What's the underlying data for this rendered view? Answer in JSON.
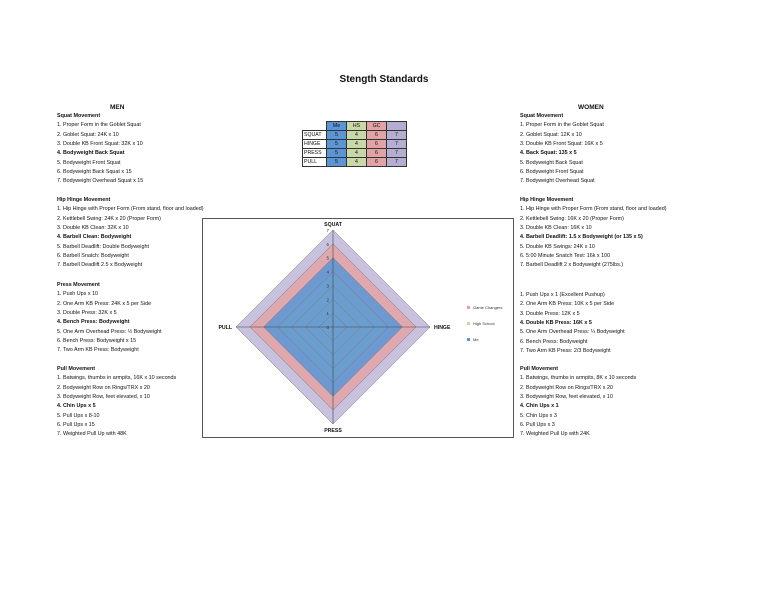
{
  "title": "Stength Standards",
  "men": {
    "heading": "MEN",
    "sections": [
      {
        "title": "Squat Movement",
        "items": [
          {
            "text": "1. Proper Form in the Goblet Squat",
            "bold": false
          },
          {
            "text": "2. Goblet Squat: 24K x 10",
            "bold": false
          },
          {
            "text": "3. Double KB Front Squat: 32K x 10",
            "bold": false
          },
          {
            "text": "4. Bodyweight Back Squat",
            "bold": true
          },
          {
            "text": "5. Bodyweight Front Squat",
            "bold": false
          },
          {
            "text": "6. Bodyweight Back Squat x 15",
            "bold": false
          },
          {
            "text": "7. Bodyweight Overhead Squat x 15",
            "bold": false
          }
        ]
      },
      {
        "title": "Hip Hinge Movement",
        "items": [
          {
            "text": "1. Hip Hinge with Proper Form (From stand, floor and loaded)",
            "bold": false
          },
          {
            "text": "2. Kettlebell Swing: 24K x 20 (Proper Form)",
            "bold": false
          },
          {
            "text": "3. Double KB Clean: 32K x 10",
            "bold": false
          },
          {
            "text": "4. Barbell Clean: Bodyweight",
            "bold": true
          },
          {
            "text": "5. Barbell Deadlift: Double Bodyweight",
            "bold": false
          },
          {
            "text": "6. Barbell Snatch: Bodyweight",
            "bold": false
          },
          {
            "text": "7. Barbell Deadlift 2.5 x Bodyweight",
            "bold": false
          }
        ]
      },
      {
        "title": "Press Movement",
        "items": [
          {
            "text": "1. Push Ups x 10",
            "bold": false
          },
          {
            "text": "2. One Arm KB Press: 24K x 5 per Side",
            "bold": false
          },
          {
            "text": "3. Double Press: 32K x 5",
            "bold": false
          },
          {
            "text": "4. Bench Press: Bodyweight",
            "bold": true
          },
          {
            "text": "5. One Arm Overhead Press: ½ Bodyweight",
            "bold": false
          },
          {
            "text": "6. Bench Press: Bodyweight x 15",
            "bold": false
          },
          {
            "text": "7. Two Arm KB Press: Bodyweight",
            "bold": false
          }
        ]
      },
      {
        "title": "Pull Movement",
        "items": [
          {
            "text": "1. Batwings, thumbs in armpits, 16K x 10 seconds",
            "bold": false
          },
          {
            "text": "2. Bodyweight Row on Rings/TRX x 20",
            "bold": false
          },
          {
            "text": "3. Bodyweight Row, feet elevated, x 10",
            "bold": false
          },
          {
            "text": "4. Chin Ups x 5",
            "bold": true
          },
          {
            "text": "5. Pull Ups x 8-10",
            "bold": false
          },
          {
            "text": "6. Pull Ups x 15",
            "bold": false
          },
          {
            "text": "7. Weighted Pull Up with 48K",
            "bold": false
          }
        ]
      }
    ]
  },
  "women": {
    "heading": "WOMEN",
    "sections": [
      {
        "title": "Squat Movement",
        "items": [
          {
            "text": "1. Proper Form in the Goblet Squat",
            "bold": false
          },
          {
            "text": "2. Goblet Squat: 12K x 10",
            "bold": false
          },
          {
            "text": "3. Double KB Front Squat: 16K x 5",
            "bold": false
          },
          {
            "text": "4. Back Squat: 135 x 5",
            "bold": true
          },
          {
            "text": "5. Bodyweight Back Squat",
            "bold": false
          },
          {
            "text": "6. Bodyweight Front Squat",
            "bold": false
          },
          {
            "text": "7. Bodyweight Overhead Squat",
            "bold": false
          }
        ]
      },
      {
        "title": "Hip Hinge Movement",
        "items": [
          {
            "text": "1. Hip Hinge with Proper Form (From stand, floor and loaded)",
            "bold": false
          },
          {
            "text": "2. Kettlebell Swing: 16K x 20 (Proper Form)",
            "bold": false
          },
          {
            "text": "3. Double KB Clean: 16K x 10",
            "bold": false
          },
          {
            "text": "4. Barbell Deadlift: 1.5 x Bodyweight (or 135 x 5)",
            "bold": true
          },
          {
            "text": "5. Double KB Swings: 24K x 10",
            "bold": false
          },
          {
            "text": "6. 5:00 Minute Snatch Test: 16k x 100",
            "bold": false
          },
          {
            "text": "7. Barbell Deadlift 2 x Bodyweight (275lbs.)",
            "bold": false
          }
        ]
      },
      {
        "title": "",
        "items": [
          {
            "text": "1. Push Ups x 1 (Excellent Pushup)",
            "bold": false
          },
          {
            "text": "2. One Arm KB Press: 10K x 5 per Side",
            "bold": false
          },
          {
            "text": "3. Double Press: 12K x 5",
            "bold": false
          },
          {
            "text": "4. Double KB Press: 16K x 5",
            "bold": true
          },
          {
            "text": "5. One Arm Overhead Press: ¼ Bodyweight",
            "bold": false
          },
          {
            "text": "6. Bench Press: Bodyweight",
            "bold": false
          },
          {
            "text": "7. Two Arm KB Press: 2/3 Bodyweight",
            "bold": false
          }
        ]
      },
      {
        "title": "Pull Movement",
        "items": [
          {
            "text": "1. Batwings, thumbs in armpits, 8K x 10 seconds",
            "bold": false
          },
          {
            "text": "2. Bodyweight Row on Rings/TRX x 20",
            "bold": false
          },
          {
            "text": "3. Bodyweight Row, feet elevated, x 10",
            "bold": false
          },
          {
            "text": "4. Chin Ups x 1",
            "bold": true
          },
          {
            "text": "5. Chin Ups x 3",
            "bold": false
          },
          {
            "text": "6. Pull Ups x 3",
            "bold": false
          },
          {
            "text": "7. Weighted Pull Up with 24K",
            "bold": false
          }
        ]
      }
    ]
  },
  "levels_table": {
    "headers": [
      "Me",
      "HS",
      "GC",
      ""
    ],
    "rows": [
      {
        "label": "SQUAT",
        "values": [
          "5",
          "4",
          "6",
          "7"
        ]
      },
      {
        "label": "HINGE",
        "values": [
          "5",
          "4",
          "6",
          "7"
        ]
      },
      {
        "label": "PRESS",
        "values": [
          "5",
          "4",
          "6",
          "7"
        ]
      },
      {
        "label": "PULL",
        "values": [
          "5",
          "4",
          "6",
          "7"
        ]
      }
    ]
  },
  "colors": {
    "me": "#5b95d6",
    "high_school": "#c8d8a6",
    "game_changers": "#e2a3a6",
    "outer": "#b5aed3"
  },
  "chart_data": {
    "type": "radar",
    "axes": [
      "SQUAT",
      "HINGE",
      "PRESS",
      "PULL"
    ],
    "rlim": [
      0,
      7
    ],
    "ticks": [
      "0",
      "1",
      "2",
      "3",
      "4",
      "5",
      "6",
      "7"
    ],
    "grid": true,
    "legend_position": "right",
    "series": [
      {
        "name": "",
        "values": [
          7,
          7,
          7,
          7
        ],
        "color": "#b5aed3"
      },
      {
        "name": "Game Changers",
        "values": [
          6,
          6,
          6,
          6
        ],
        "color": "#e2a3a6"
      },
      {
        "name": "High School",
        "values": [
          4,
          4,
          4,
          4
        ],
        "color": "#c8d8a6"
      },
      {
        "name": "Me",
        "values": [
          5,
          5,
          5,
          5
        ],
        "color": "#5b95d6"
      }
    ],
    "legend": [
      "Game Changers",
      "High School",
      "Me"
    ]
  }
}
